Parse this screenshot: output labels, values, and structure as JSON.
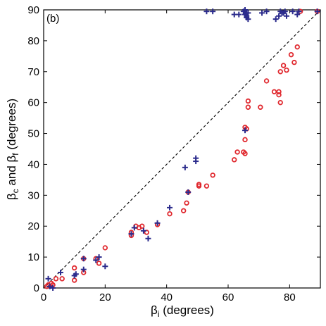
{
  "chart_data": {
    "type": "scatter",
    "panel_label": "(b)",
    "xlabel": {
      "main": "β",
      "sub": "i",
      "rest": " (degrees)"
    },
    "ylabel": {
      "main": "β",
      "sub1": "c",
      "mid": " and β",
      "sub2": "f",
      "rest": " (degrees)"
    },
    "xlim": [
      0,
      90
    ],
    "ylim": [
      0,
      90
    ],
    "xticks": [
      0,
      20,
      40,
      60,
      80
    ],
    "yticks": [
      0,
      10,
      20,
      30,
      40,
      50,
      60,
      70,
      80,
      90
    ],
    "reference_line": {
      "style": "dashed",
      "from": [
        0,
        0
      ],
      "to": [
        90,
        90
      ],
      "color": "#000000"
    },
    "series": [
      {
        "marker": "circle",
        "color": "#e0282e",
        "points": [
          [
            1,
            0.5
          ],
          [
            1.5,
            1
          ],
          [
            2.5,
            1.5
          ],
          [
            3,
            1
          ],
          [
            4,
            3
          ],
          [
            6,
            3
          ],
          [
            10,
            6.5
          ],
          [
            10,
            2.5
          ],
          [
            13,
            5
          ],
          [
            13,
            9.5
          ],
          [
            17,
            9.5
          ],
          [
            18,
            8
          ],
          [
            20,
            13
          ],
          [
            28.5,
            17
          ],
          [
            28.5,
            18
          ],
          [
            30,
            20
          ],
          [
            31,
            19.5
          ],
          [
            32,
            20
          ],
          [
            33.5,
            18
          ],
          [
            37,
            20.5
          ],
          [
            41,
            24
          ],
          [
            45.5,
            25
          ],
          [
            46.5,
            27.5
          ],
          [
            47,
            31
          ],
          [
            50.5,
            33
          ],
          [
            50.5,
            33.5
          ],
          [
            53,
            33
          ],
          [
            55,
            36.5
          ],
          [
            62,
            41.5
          ],
          [
            63,
            44
          ],
          [
            65,
            44
          ],
          [
            65.5,
            43.5
          ],
          [
            65.5,
            48
          ],
          [
            65.5,
            52
          ],
          [
            66,
            51.5
          ],
          [
            66.5,
            60.5
          ],
          [
            66.5,
            58.5
          ],
          [
            70.5,
            58.5
          ],
          [
            72.5,
            67
          ],
          [
            75,
            63.5
          ],
          [
            76.5,
            63.5
          ],
          [
            76.5,
            62.5
          ],
          [
            77,
            70
          ],
          [
            77,
            60
          ],
          [
            78,
            72
          ],
          [
            79,
            70.5
          ],
          [
            80.5,
            75.5
          ],
          [
            81.5,
            73
          ],
          [
            82.5,
            78
          ],
          [
            83.5,
            89.5
          ],
          [
            89,
            89.5
          ]
        ]
      },
      {
        "marker": "plus",
        "color": "#2b2b8c",
        "points": [
          [
            1.5,
            3
          ],
          [
            2,
            0.5
          ],
          [
            3,
            0
          ],
          [
            5.5,
            5
          ],
          [
            10,
            4
          ],
          [
            10.5,
            4.5
          ],
          [
            13,
            6
          ],
          [
            13,
            9.5
          ],
          [
            17,
            9
          ],
          [
            18,
            10
          ],
          [
            20,
            7
          ],
          [
            28.5,
            17.5
          ],
          [
            29.5,
            19.5
          ],
          [
            32.5,
            18.5
          ],
          [
            34,
            16
          ],
          [
            37,
            21
          ],
          [
            41,
            26
          ],
          [
            46,
            39
          ],
          [
            47,
            31
          ],
          [
            49.5,
            41
          ],
          [
            49.5,
            42
          ],
          [
            53,
            89.5
          ],
          [
            55,
            89.5
          ],
          [
            62,
            88.5
          ],
          [
            63.5,
            88.5
          ],
          [
            65,
            89.5
          ],
          [
            65.5,
            88.5
          ],
          [
            65.5,
            90
          ],
          [
            66,
            89
          ],
          [
            66,
            88
          ],
          [
            66,
            87.5
          ],
          [
            66.5,
            87
          ],
          [
            66.5,
            89
          ],
          [
            71,
            89
          ],
          [
            72.5,
            89.5
          ],
          [
            75.5,
            87
          ],
          [
            76.5,
            88
          ],
          [
            77,
            89.5
          ],
          [
            77.5,
            89
          ],
          [
            78,
            89
          ],
          [
            78.5,
            89.5
          ],
          [
            79,
            88
          ],
          [
            81,
            89.5
          ],
          [
            82.5,
            88.5
          ],
          [
            83,
            89.5
          ],
          [
            89,
            89.5
          ],
          [
            65.5,
            51
          ]
        ]
      }
    ]
  }
}
